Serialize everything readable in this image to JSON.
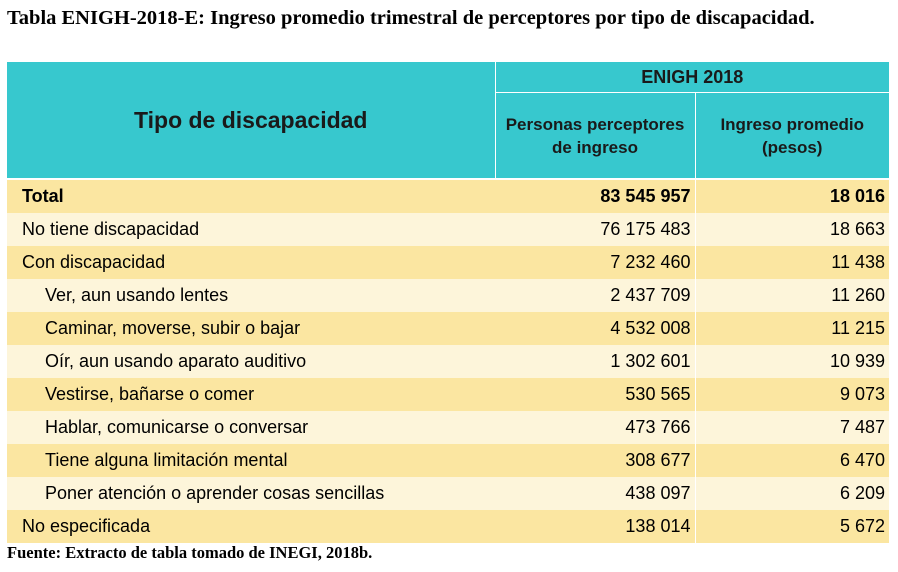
{
  "title": "Tabla ENIGH-2018-E: Ingreso promedio trimestral de perceptores por tipo de discapacidad.",
  "table": {
    "header_main": "Tipo de discapacidad",
    "header_group": "ENIGH 2018",
    "header_col2": "Personas perceptores de ingreso",
    "header_col3": "Ingreso promedio (pesos)",
    "rows": [
      {
        "label": "Total",
        "personas": "83 545 957",
        "ingreso": "18 016"
      },
      {
        "label": "No tiene discapacidad",
        "personas": "76 175 483",
        "ingreso": "18 663"
      },
      {
        "label": "Con discapacidad",
        "personas": "7 232 460",
        "ingreso": "11 438"
      },
      {
        "label": "Ver, aun usando lentes",
        "personas": "2 437 709",
        "ingreso": "11 260"
      },
      {
        "label": "Caminar, moverse, subir o bajar",
        "personas": "4 532 008",
        "ingreso": "11 215"
      },
      {
        "label": "Oír, aun usando aparato auditivo",
        "personas": "1 302 601",
        "ingreso": "10 939"
      },
      {
        "label": "Vestirse, bañarse o comer",
        "personas": "530 565",
        "ingreso": "9 073"
      },
      {
        "label": "Hablar, comunicarse o conversar",
        "personas": "473 766",
        "ingreso": "7 487"
      },
      {
        "label": "Tiene alguna limitación mental",
        "personas": "308 677",
        "ingreso": "6 470"
      },
      {
        "label": "Poner atención o aprender cosas sencillas",
        "personas": "438 097",
        "ingreso": "6 209"
      },
      {
        "label": "No especificada",
        "personas": "138 014",
        "ingreso": "5 672"
      }
    ]
  },
  "footer": "Fuente: Extracto de tabla tomado de INEGI, 2018b.",
  "colors": {
    "header": "#37c8ce",
    "row_odd": "#fbe6a1",
    "row_even": "#fdf5da"
  }
}
